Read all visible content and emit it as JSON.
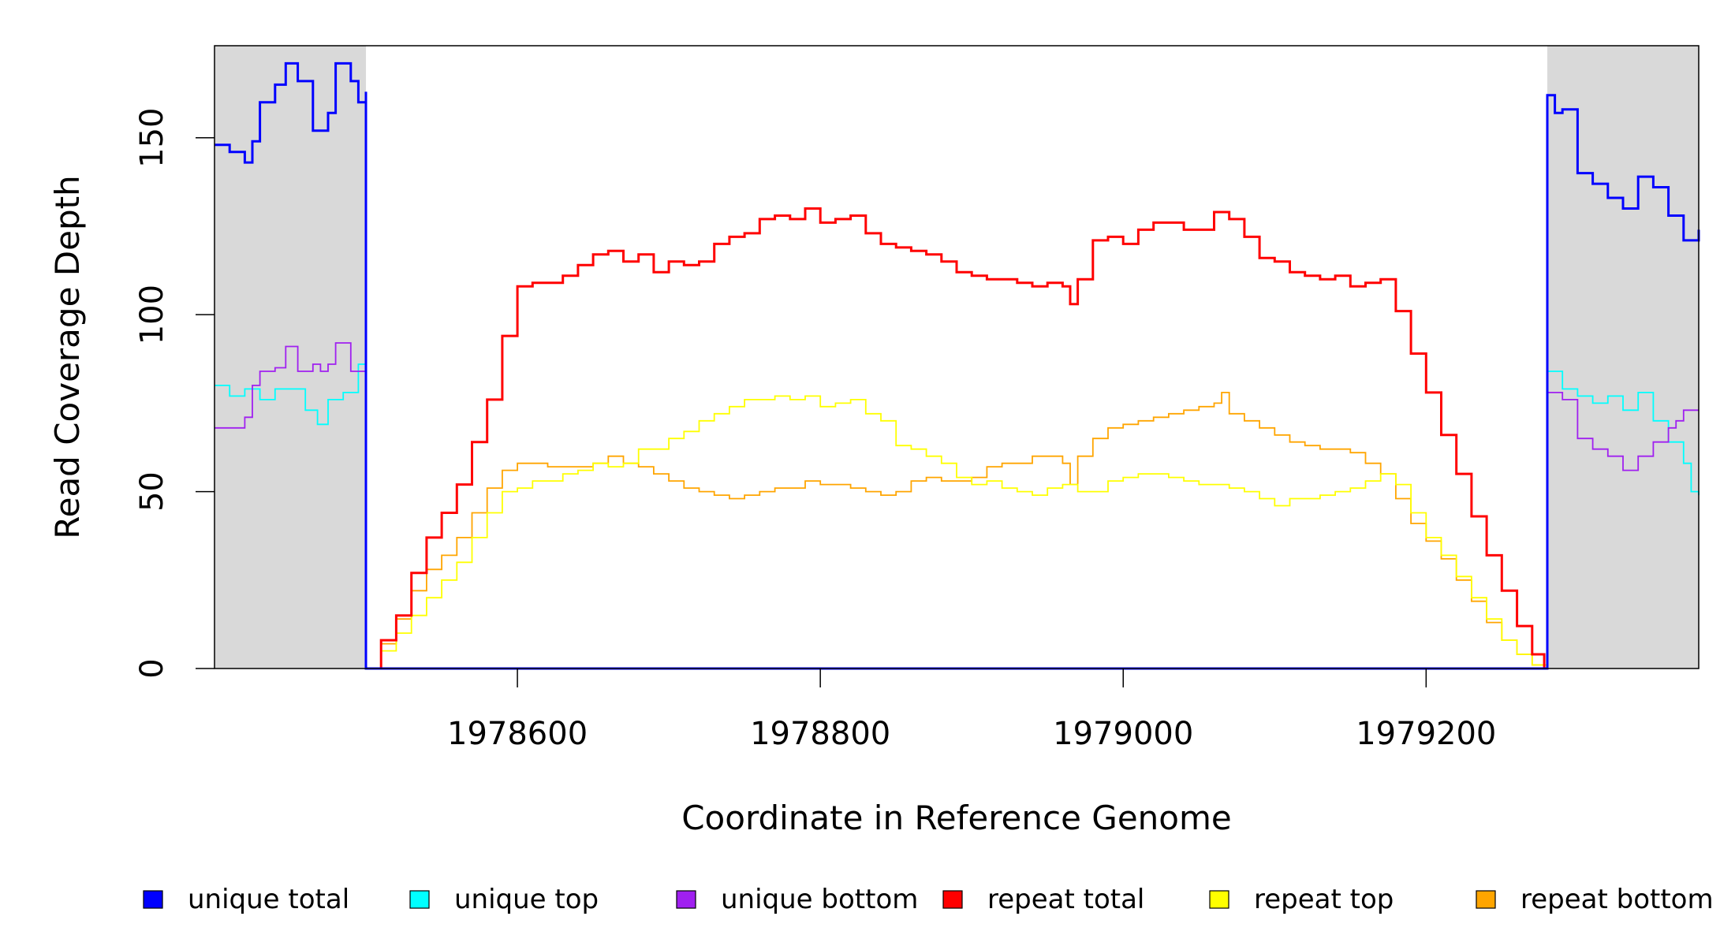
{
  "chart_data": {
    "type": "line",
    "title": "",
    "xlabel": "Coordinate in Reference Genome",
    "ylabel": "Read Coverage Depth",
    "xlim": [
      1978400,
      1979380
    ],
    "ylim": [
      0,
      176
    ],
    "x_ticks": [
      1978600,
      1978800,
      1979000,
      1979200
    ],
    "x_tick_labels": [
      "1978600",
      "1978800",
      "1979000",
      "1979200"
    ],
    "y_ticks": [
      0,
      50,
      100,
      150
    ],
    "y_tick_labels": [
      "0",
      "50",
      "100",
      "150"
    ],
    "grid": false,
    "legend_position": "bottom",
    "shaded_regions": [
      {
        "x_start": 1978400,
        "x_end": 1978500,
        "color": "#d9d9d9"
      },
      {
        "x_start": 1979280,
        "x_end": 1979380,
        "color": "#d9d9d9"
      }
    ],
    "series": [
      {
        "name": "unique total",
        "color": "#0000ff",
        "x": [
          1978400,
          1978410,
          1978420,
          1978425,
          1978430,
          1978440,
          1978447,
          1978455,
          1978465,
          1978475,
          1978480,
          1978490,
          1978495,
          1978500,
          1978500,
          1979280,
          1979280,
          1979285,
          1979290,
          1979300,
          1979310,
          1979320,
          1979330,
          1979340,
          1979350,
          1979360,
          1979370,
          1979380
        ],
        "y": [
          148,
          146,
          143,
          149,
          160,
          165,
          171,
          166,
          152,
          157,
          171,
          166,
          160,
          163,
          0,
          0,
          162,
          157,
          158,
          140,
          137,
          133,
          130,
          139,
          136,
          128,
          121,
          124
        ]
      },
      {
        "name": "unique top",
        "color": "#00ffff",
        "x": [
          1978400,
          1978410,
          1978420,
          1978430,
          1978440,
          1978450,
          1978460,
          1978468,
          1978475,
          1978485,
          1978495,
          1978500,
          1978500,
          1979280,
          1979280,
          1979290,
          1979300,
          1979310,
          1979320,
          1979330,
          1979340,
          1979350,
          1979360,
          1979370,
          1979375,
          1979380
        ],
        "y": [
          80,
          77,
          79,
          76,
          79,
          79,
          73,
          69,
          76,
          78,
          86,
          84,
          0,
          0,
          84,
          79,
          77,
          75,
          77,
          73,
          78,
          70,
          64,
          58,
          50,
          49
        ]
      },
      {
        "name": "unique bottom",
        "color": "#a020f0",
        "x": [
          1978400,
          1978410,
          1978420,
          1978425,
          1978430,
          1978440,
          1978447,
          1978455,
          1978465,
          1978470,
          1978475,
          1978480,
          1978490,
          1978500,
          1978500,
          1979280,
          1979280,
          1979290,
          1979300,
          1979310,
          1979320,
          1979330,
          1979340,
          1979350,
          1979360,
          1979365,
          1979370,
          1979380
        ],
        "y": [
          68,
          68,
          71,
          80,
          84,
          85,
          91,
          84,
          86,
          84,
          86,
          92,
          84,
          78,
          0,
          0,
          78,
          76,
          65,
          62,
          60,
          56,
          60,
          64,
          68,
          70,
          73,
          73
        ]
      },
      {
        "name": "repeat total",
        "color": "#ff0000",
        "x": [
          1978500,
          1978510,
          1978520,
          1978530,
          1978540,
          1978550,
          1978560,
          1978570,
          1978580,
          1978590,
          1978600,
          1978610,
          1978620,
          1978630,
          1978640,
          1978650,
          1978660,
          1978670,
          1978680,
          1978690,
          1978700,
          1978710,
          1978720,
          1978730,
          1978740,
          1978750,
          1978760,
          1978770,
          1978780,
          1978790,
          1978800,
          1978810,
          1978820,
          1978830,
          1978840,
          1978850,
          1978860,
          1978870,
          1978880,
          1978890,
          1978900,
          1978910,
          1978920,
          1978930,
          1978940,
          1978950,
          1978960,
          1978965,
          1978970,
          1978980,
          1978990,
          1979000,
          1979010,
          1979020,
          1979030,
          1979040,
          1979050,
          1979060,
          1979070,
          1979080,
          1979090,
          1979100,
          1979110,
          1979120,
          1979130,
          1979140,
          1979150,
          1979160,
          1979170,
          1979180,
          1979190,
          1979200,
          1979210,
          1979220,
          1979230,
          1979240,
          1979250,
          1979260,
          1979270,
          1979278,
          1979280
        ],
        "y": [
          0,
          8,
          15,
          27,
          37,
          44,
          52,
          64,
          76,
          94,
          108,
          109,
          109,
          111,
          114,
          117,
          118,
          115,
          117,
          112,
          115,
          114,
          115,
          120,
          122,
          123,
          127,
          128,
          127,
          130,
          126,
          127,
          128,
          123,
          120,
          119,
          118,
          117,
          115,
          112,
          111,
          110,
          110,
          109,
          108,
          109,
          108,
          103,
          110,
          121,
          122,
          120,
          124,
          126,
          126,
          124,
          124,
          129,
          127,
          122,
          116,
          115,
          112,
          111,
          110,
          111,
          108,
          109,
          110,
          101,
          89,
          78,
          66,
          55,
          43,
          32,
          22,
          12,
          4,
          0,
          0
        ]
      },
      {
        "name": "repeat top",
        "color": "#ffff00",
        "x": [
          1978500,
          1978510,
          1978520,
          1978530,
          1978540,
          1978550,
          1978560,
          1978570,
          1978580,
          1978590,
          1978600,
          1978610,
          1978620,
          1978630,
          1978640,
          1978650,
          1978660,
          1978670,
          1978680,
          1978690,
          1978700,
          1978710,
          1978720,
          1978730,
          1978740,
          1978750,
          1978760,
          1978770,
          1978780,
          1978790,
          1978800,
          1978810,
          1978820,
          1978830,
          1978840,
          1978850,
          1978860,
          1978870,
          1978880,
          1978890,
          1978900,
          1978910,
          1978920,
          1978930,
          1978940,
          1978950,
          1978960,
          1978970,
          1978980,
          1978990,
          1979000,
          1979010,
          1979020,
          1979030,
          1979040,
          1979050,
          1979060,
          1979070,
          1979080,
          1979090,
          1979100,
          1979110,
          1979120,
          1979130,
          1979140,
          1979150,
          1979160,
          1979170,
          1979180,
          1979190,
          1979200,
          1979210,
          1979220,
          1979230,
          1979240,
          1979250,
          1979260,
          1979270,
          1979280
        ],
        "y": [
          0,
          5,
          10,
          15,
          20,
          25,
          30,
          37,
          44,
          50,
          51,
          53,
          53,
          55,
          56,
          58,
          57,
          58,
          62,
          62,
          65,
          67,
          70,
          72,
          74,
          76,
          76,
          77,
          76,
          77,
          74,
          75,
          76,
          72,
          70,
          63,
          62,
          60,
          58,
          54,
          52,
          53,
          51,
          50,
          49,
          51,
          52,
          50,
          50,
          53,
          54,
          55,
          55,
          54,
          53,
          52,
          52,
          51,
          50,
          48,
          46,
          48,
          48,
          49,
          50,
          51,
          53,
          55,
          52,
          44,
          37,
          32,
          26,
          20,
          14,
          8,
          4,
          1,
          0
        ]
      },
      {
        "name": "repeat bottom",
        "color": "#ffa500",
        "x": [
          1978500,
          1978510,
          1978520,
          1978530,
          1978540,
          1978550,
          1978560,
          1978570,
          1978580,
          1978590,
          1978600,
          1978610,
          1978620,
          1978630,
          1978640,
          1978650,
          1978660,
          1978670,
          1978680,
          1978690,
          1978700,
          1978710,
          1978720,
          1978730,
          1978740,
          1978750,
          1978760,
          1978770,
          1978780,
          1978790,
          1978800,
          1978810,
          1978820,
          1978830,
          1978840,
          1978850,
          1978860,
          1978870,
          1978880,
          1978890,
          1978900,
          1978910,
          1978920,
          1978930,
          1978940,
          1978950,
          1978960,
          1978965,
          1978970,
          1978980,
          1978990,
          1979000,
          1979010,
          1979020,
          1979030,
          1979040,
          1979050,
          1979060,
          1979065,
          1979070,
          1979080,
          1979090,
          1979100,
          1979110,
          1979120,
          1979130,
          1979140,
          1979150,
          1979160,
          1979170,
          1979180,
          1979190,
          1979200,
          1979210,
          1979220,
          1979230,
          1979240,
          1979250,
          1979260,
          1979270,
          1979280
        ],
        "y": [
          0,
          7,
          14,
          22,
          28,
          32,
          37,
          44,
          51,
          56,
          58,
          58,
          57,
          57,
          57,
          58,
          60,
          58,
          57,
          55,
          53,
          51,
          50,
          49,
          48,
          49,
          50,
          51,
          51,
          53,
          52,
          52,
          51,
          50,
          49,
          50,
          53,
          54,
          53,
          53,
          54,
          57,
          58,
          58,
          60,
          60,
          58,
          52,
          60,
          65,
          68,
          69,
          70,
          71,
          72,
          73,
          74,
          75,
          78,
          72,
          70,
          68,
          66,
          64,
          63,
          62,
          62,
          61,
          58,
          55,
          48,
          41,
          36,
          31,
          25,
          19,
          13,
          8,
          4,
          1,
          0
        ]
      }
    ]
  }
}
